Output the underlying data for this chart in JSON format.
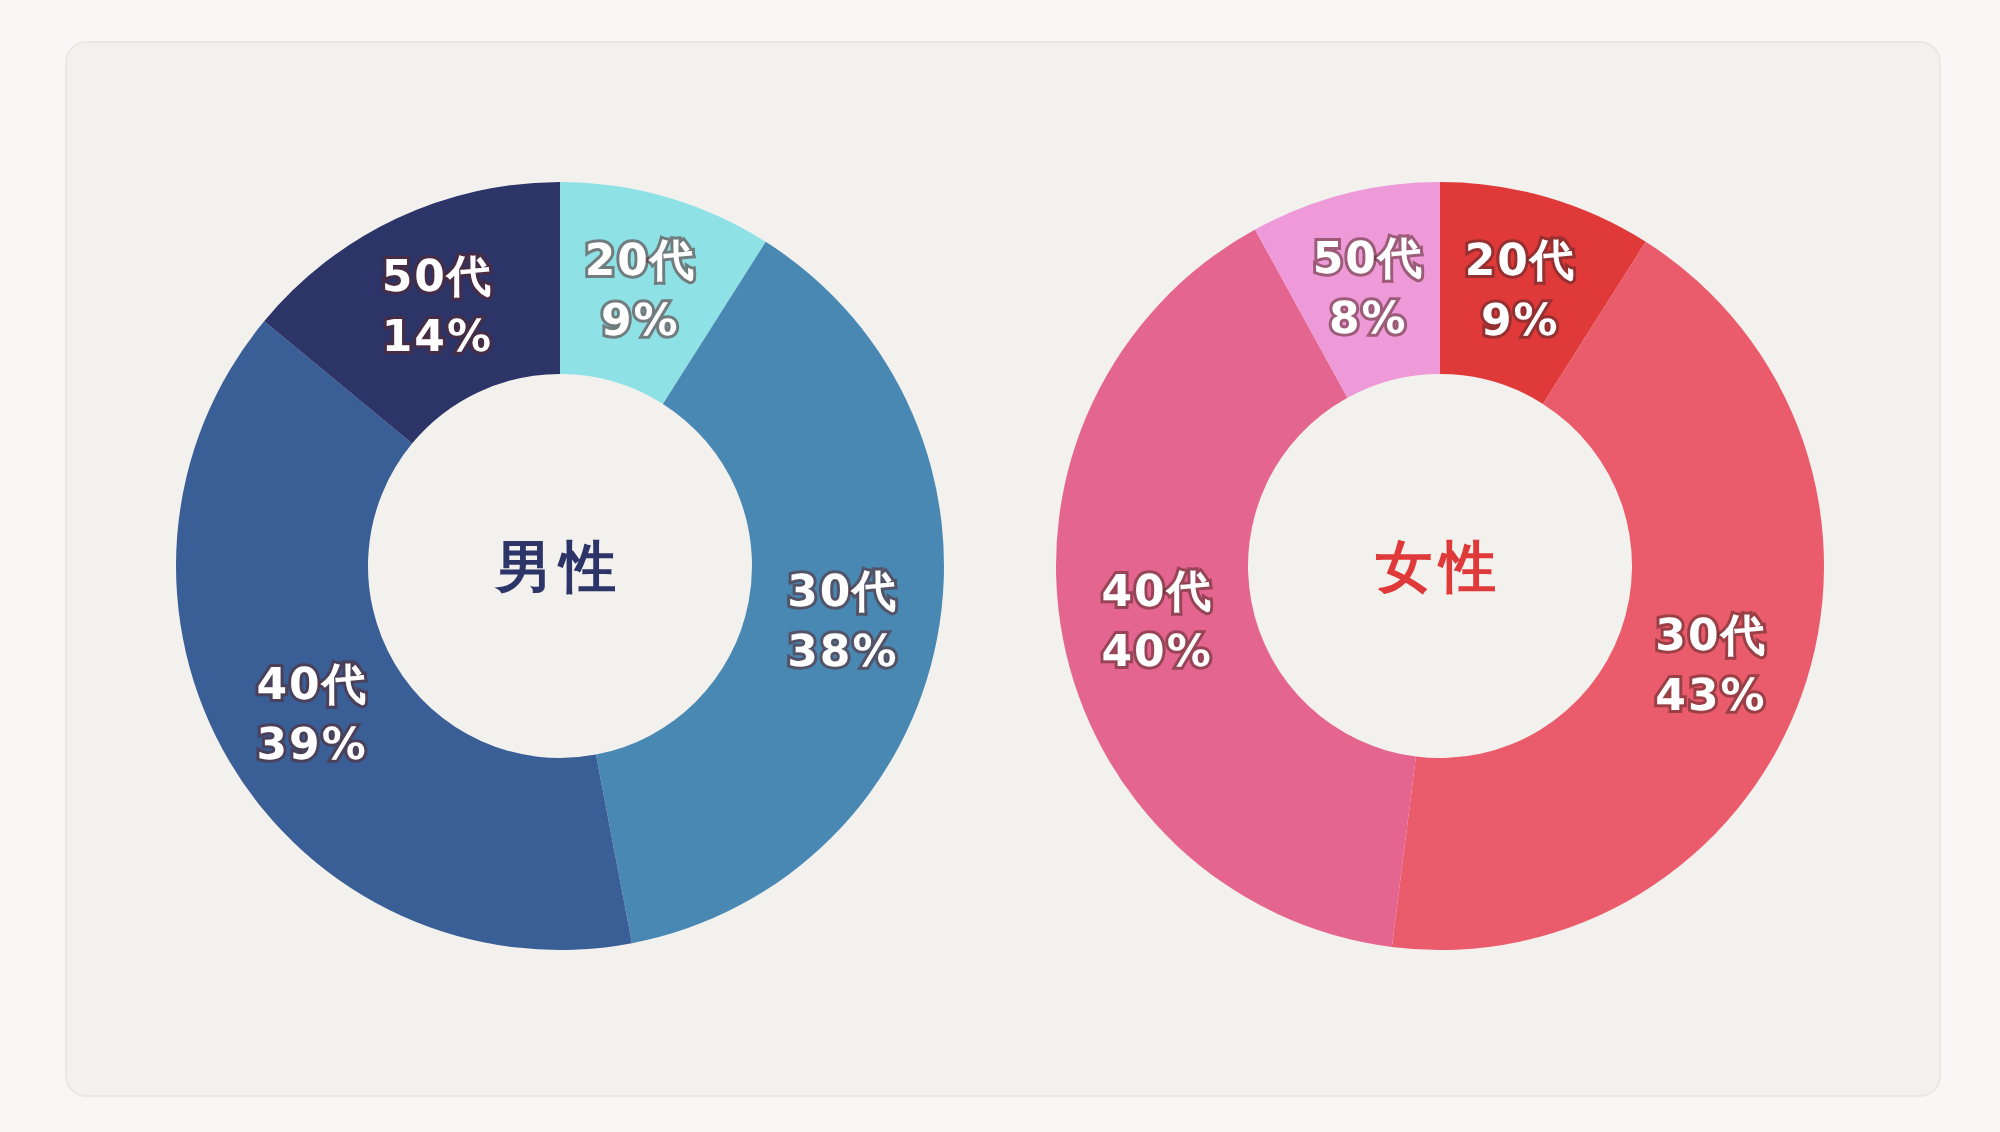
{
  "chart_data": [
    {
      "type": "donut",
      "title": "男性",
      "categories": [
        "20代",
        "30代",
        "40代",
        "50代"
      ],
      "values": [
        9,
        38,
        39,
        14
      ],
      "colors": [
        "#8ee2e6",
        "#4a88b4",
        "#3a5e96",
        "#2c3468"
      ],
      "value_labels": [
        "9%",
        "38%",
        "39%",
        "14%"
      ],
      "legend": false
    },
    {
      "type": "donut",
      "title": "女性",
      "categories": [
        "20代",
        "30代",
        "40代",
        "50代"
      ],
      "values": [
        9,
        43,
        40,
        8
      ],
      "colors": [
        "#e0393a",
        "#ea5c6b",
        "#e46690",
        "#ee9ad8"
      ],
      "value_labels": [
        "9%",
        "43%",
        "40%",
        "8%"
      ],
      "legend": false
    }
  ]
}
